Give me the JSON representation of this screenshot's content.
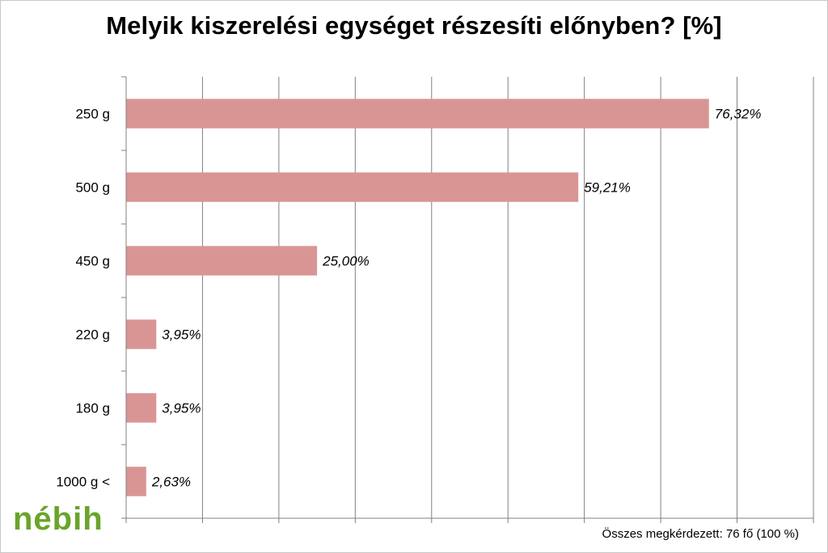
{
  "chart_data": {
    "type": "bar",
    "orientation": "horizontal",
    "title": "Melyik kiszerelési egységet részesíti előnyben? [%]",
    "categories": [
      "250 g",
      "500 g",
      "450 g",
      "220 g",
      "180 g",
      "1000 g <"
    ],
    "values": [
      76.32,
      59.21,
      25.0,
      3.95,
      3.95,
      2.63
    ],
    "data_labels": [
      "76,32%",
      "59,21%",
      "25,00%",
      "3,95%",
      "3,95%",
      "2,63%"
    ],
    "xlim": [
      0,
      90
    ],
    "grid": true,
    "bar_color": "#d99594"
  },
  "logo_text": "nébih",
  "footer": "Összes megkérdezett:  76 fő (100 %)"
}
